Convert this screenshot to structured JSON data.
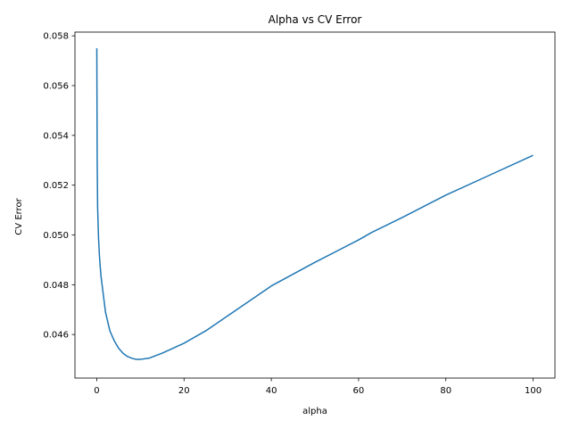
{
  "chart_data": {
    "type": "line",
    "title": "Alpha vs CV Error",
    "xlabel": "alpha",
    "ylabel": "CV Error",
    "xlim": [
      -5,
      105
    ],
    "ylim": [
      0.04425,
      0.05815
    ],
    "xticks": [
      {
        "value": 0,
        "label": "0"
      },
      {
        "value": 20,
        "label": "20"
      },
      {
        "value": 40,
        "label": "40"
      },
      {
        "value": 60,
        "label": "60"
      },
      {
        "value": 80,
        "label": "80"
      },
      {
        "value": 100,
        "label": "100"
      }
    ],
    "yticks": [
      {
        "value": 0.046,
        "label": "0.046"
      },
      {
        "value": 0.048,
        "label": "0.048"
      },
      {
        "value": 0.05,
        "label": "0.050"
      },
      {
        "value": 0.052,
        "label": "0.052"
      },
      {
        "value": 0.054,
        "label": "0.054"
      },
      {
        "value": 0.056,
        "label": "0.056"
      },
      {
        "value": 0.058,
        "label": "0.058"
      }
    ],
    "grid": false,
    "series": [
      {
        "color": "#1f77b4",
        "x": [
          0.01,
          0.1,
          0.2,
          0.4,
          0.6,
          0.8,
          1.0,
          1.5,
          2.0,
          3.0,
          4.0,
          5.0,
          6.0,
          7.0,
          8.0,
          9.0,
          10.0,
          12.0,
          15.0,
          20.0,
          25.0,
          30.0,
          35.0,
          40.0,
          50.0,
          60.0,
          63.0,
          70.0,
          80.0,
          90.0,
          100.0
        ],
        "y": [
          0.0575,
          0.053,
          0.0511,
          0.0499,
          0.0492,
          0.0487,
          0.0483,
          0.0476,
          0.0469,
          0.04615,
          0.04575,
          0.04545,
          0.04525,
          0.04512,
          0.04505,
          0.045,
          0.045,
          0.04505,
          0.04525,
          0.04565,
          0.04615,
          0.04675,
          0.04735,
          0.04795,
          0.0489,
          0.0498,
          0.0501,
          0.0507,
          0.0516,
          0.0524,
          0.0532
        ]
      }
    ]
  }
}
